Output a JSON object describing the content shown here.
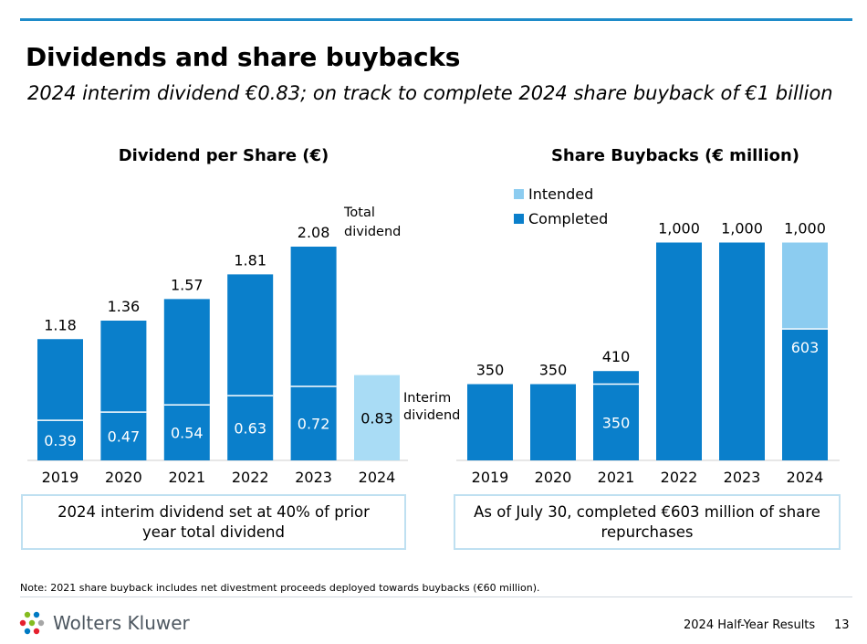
{
  "slide": {
    "title": "Dividends and share buybacks",
    "subtitle": "2024 interim dividend €0.83; on track to complete 2024 share buyback of €1 billion",
    "note": "Note: 2021 share buyback includes net divestment proceeds deployed towards buybacks (€60 million).",
    "logo_text": "Wolters Kluwer",
    "footer_title": "2024 Half-Year Results",
    "page_number": "13"
  },
  "colors": {
    "completed": "#0a7fcb",
    "intended": "#8cccf0",
    "light": "#a9dcf5",
    "accent_rule": "#1e8bc9",
    "callout_border": "#bfe0f1"
  },
  "chart_data": [
    {
      "type": "bar",
      "title": "Dividend per Share (€)",
      "categories": [
        "2019",
        "2020",
        "2021",
        "2022",
        "2023",
        "2024"
      ],
      "total": [
        1.18,
        1.36,
        1.57,
        1.81,
        2.08,
        0.83
      ],
      "interim": [
        0.39,
        0.47,
        0.54,
        0.63,
        0.72,
        0.83
      ],
      "total_labels": [
        "1.18",
        "1.36",
        "1.57",
        "1.81",
        "2.08",
        ""
      ],
      "interim_labels": [
        "0.39",
        "0.47",
        "0.54",
        "0.63",
        "0.72",
        "0.83"
      ],
      "annotations": {
        "total": "Total dividend",
        "interim": "Interim dividend"
      },
      "ylim": [
        0,
        2.2
      ],
      "grid": false,
      "callout": "2024 interim dividend set at 40% of prior year total dividend"
    },
    {
      "type": "bar",
      "stacked": true,
      "title": "Share Buybacks (€ million)",
      "categories": [
        "2019",
        "2020",
        "2021",
        "2022",
        "2023",
        "2024"
      ],
      "series": [
        {
          "name": "Completed",
          "values": [
            350,
            350,
            410,
            1000,
            1000,
            603
          ]
        },
        {
          "name": "Intended",
          "values": [
            0,
            0,
            0,
            0,
            0,
            397
          ]
        }
      ],
      "total_labels": [
        "350",
        "350",
        "410",
        "1,000",
        "1,000",
        "1,000"
      ],
      "inner_labels": [
        "",
        "",
        "350",
        "",
        "",
        "603"
      ],
      "legend_position": "top-left",
      "ylim": [
        0,
        1100
      ],
      "grid": false,
      "callout": "As of July 30, completed €603 million of share repurchases"
    }
  ]
}
